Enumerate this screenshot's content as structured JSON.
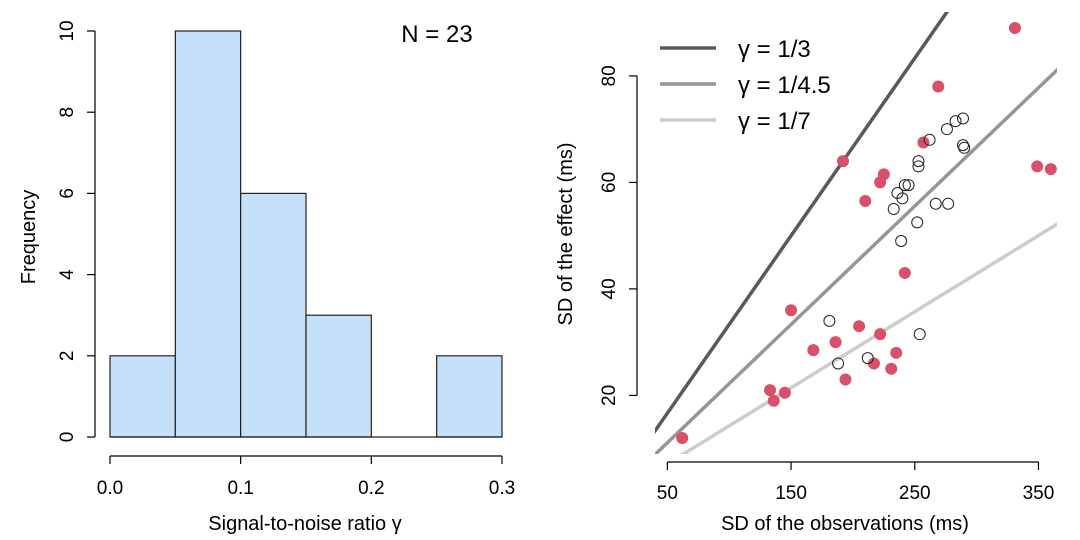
{
  "chart_data": [
    {
      "type": "bar",
      "subtype": "histogram",
      "xlabel": "Signal-to-noise ratio γ",
      "ylabel": "Frequency",
      "annotation": "N = 23",
      "bins": [
        {
          "from": 0.0,
          "to": 0.05,
          "count": 2
        },
        {
          "from": 0.05,
          "to": 0.1,
          "count": 10
        },
        {
          "from": 0.1,
          "to": 0.15,
          "count": 6
        },
        {
          "from": 0.15,
          "to": 0.2,
          "count": 3
        },
        {
          "from": 0.2,
          "to": 0.25,
          "count": 0
        },
        {
          "from": 0.25,
          "to": 0.3,
          "count": 2
        }
      ],
      "xlim": [
        0,
        0.3
      ],
      "ylim": [
        0,
        10
      ],
      "xticks": [
        "0.0",
        "0.1",
        "0.2",
        "0.3"
      ],
      "xtick_values": [
        0,
        0.1,
        0.2,
        0.3
      ],
      "yticks": [
        "0",
        "2",
        "4",
        "6",
        "8",
        "10"
      ],
      "ytick_values": [
        0,
        2,
        4,
        6,
        8,
        10
      ],
      "bar_color": "#c6e0fa",
      "edge_color": "#222222"
    },
    {
      "type": "scatter",
      "xlabel": "SD of the observations (ms)",
      "ylabel": "SD of the effect (ms)",
      "xlim": [
        40,
        365
      ],
      "ylim": [
        9,
        92
      ],
      "xticks": [
        "50",
        "150",
        "250",
        "350"
      ],
      "xtick_values": [
        50,
        150,
        250,
        350
      ],
      "yticks": [
        "20",
        "40",
        "60",
        "80"
      ],
      "ytick_values": [
        20,
        40,
        60,
        80
      ],
      "legend_position": "top-left",
      "lines": [
        {
          "name": "γ = 1/3",
          "slope": 0.3333,
          "color": "#595959"
        },
        {
          "name": "γ = 1/4.5",
          "slope": 0.2222,
          "color": "#969696"
        },
        {
          "name": "γ = 1/7",
          "slope": 0.1429,
          "color": "#cccccc"
        }
      ],
      "series": [
        {
          "marker": "filled",
          "color": "#d9506a",
          "points": [
            [
              62,
              12
            ],
            [
              133,
              21
            ],
            [
              136,
              19
            ],
            [
              145,
              20.5
            ],
            [
              150,
              36
            ],
            [
              168,
              28.5
            ],
            [
              186,
              30
            ],
            [
              194,
              23
            ],
            [
              192,
              64
            ],
            [
              205,
              33
            ],
            [
              210,
              56.5
            ],
            [
              217,
              26
            ],
            [
              222,
              31.5
            ],
            [
              222,
              60
            ],
            [
              225,
              61.5
            ],
            [
              231,
              25
            ],
            [
              235,
              28
            ],
            [
              242,
              43
            ],
            [
              257,
              67.5
            ],
            [
              269,
              78
            ],
            [
              331,
              89
            ],
            [
              349,
              63
            ],
            [
              360,
              62.5
            ]
          ]
        },
        {
          "marker": "open",
          "color": "#222222",
          "points": [
            [
              181,
              34
            ],
            [
              188,
              26
            ],
            [
              212,
              27
            ],
            [
              233,
              55
            ],
            [
              236,
              58
            ],
            [
              239,
              49
            ],
            [
              240,
              57
            ],
            [
              242,
              59.5
            ],
            [
              245,
              59.5
            ],
            [
              252,
              52.5
            ],
            [
              253,
              63
            ],
            [
              253,
              64
            ],
            [
              254,
              31.5
            ],
            [
              262,
              68
            ],
            [
              267,
              56
            ],
            [
              276,
              70
            ],
            [
              277,
              56
            ],
            [
              283,
              71.5
            ],
            [
              289,
              72
            ],
            [
              289,
              67
            ],
            [
              290,
              66.5
            ]
          ]
        }
      ]
    }
  ]
}
